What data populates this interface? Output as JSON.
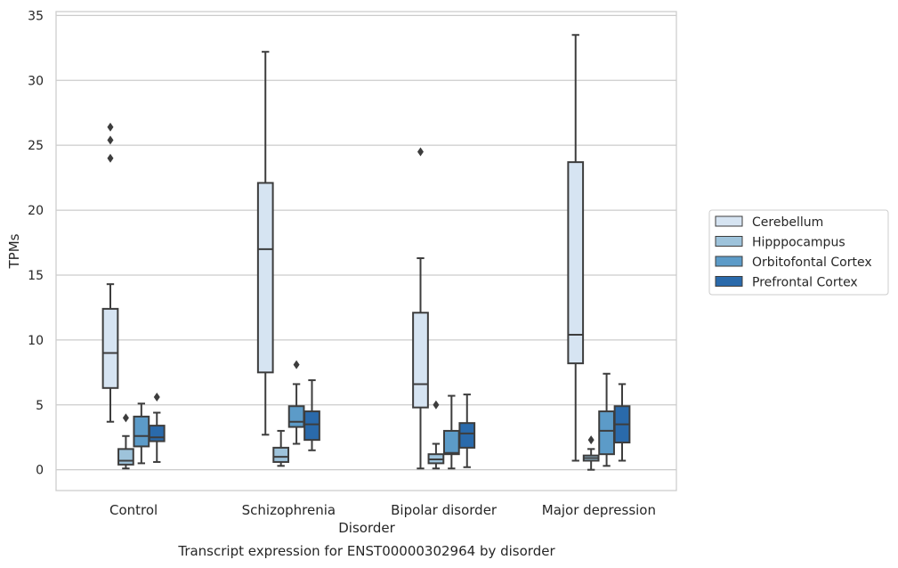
{
  "chart_data": {
    "type": "box",
    "xlabel": "Disorder",
    "ylabel": "TPMs",
    "ylim": [
      -1.6,
      35.3
    ],
    "yticks": [
      0,
      5,
      10,
      15,
      20,
      25,
      30,
      35
    ],
    "grid": "horizontal",
    "legend_position": "right",
    "categories": [
      "Control",
      "Schizophrenia",
      "Bipolar disorder",
      "Major depression"
    ],
    "series": [
      {
        "name": "Cerebellum",
        "color": "#d6e4f2",
        "boxes": [
          {
            "whisker_low": 3.7,
            "q1": 6.3,
            "median": 9.0,
            "q3": 12.4,
            "whisker_high": 14.3,
            "outliers": [
              24.0,
              25.4,
              26.4
            ]
          },
          {
            "whisker_low": 2.7,
            "q1": 7.5,
            "median": 17.0,
            "q3": 22.1,
            "whisker_high": 32.2,
            "outliers": []
          },
          {
            "whisker_low": 0.1,
            "q1": 4.8,
            "median": 6.6,
            "q3": 12.1,
            "whisker_high": 16.3,
            "outliers": [
              24.5
            ]
          },
          {
            "whisker_low": 0.7,
            "q1": 8.2,
            "median": 10.4,
            "q3": 23.7,
            "whisker_high": 33.5,
            "outliers": []
          }
        ]
      },
      {
        "name": "Hipppocampus",
        "color": "#9ec3db",
        "boxes": [
          {
            "whisker_low": 0.1,
            "q1": 0.4,
            "median": 0.7,
            "q3": 1.6,
            "whisker_high": 2.6,
            "outliers": [
              4.0
            ]
          },
          {
            "whisker_low": 0.3,
            "q1": 0.6,
            "median": 1.0,
            "q3": 1.7,
            "whisker_high": 3.0,
            "outliers": []
          },
          {
            "whisker_low": 0.1,
            "q1": 0.5,
            "median": 0.8,
            "q3": 1.2,
            "whisker_high": 2.0,
            "outliers": [
              5.0
            ]
          },
          {
            "whisker_low": 0.0,
            "q1": 0.7,
            "median": 0.9,
            "q3": 1.1,
            "whisker_high": 1.6,
            "outliers": [
              2.3
            ]
          }
        ]
      },
      {
        "name": "Orbitofontal Cortex",
        "color": "#5c9bc8",
        "boxes": [
          {
            "whisker_low": 0.5,
            "q1": 1.8,
            "median": 2.6,
            "q3": 4.1,
            "whisker_high": 5.1,
            "outliers": []
          },
          {
            "whisker_low": 2.0,
            "q1": 3.3,
            "median": 3.7,
            "q3": 4.9,
            "whisker_high": 6.6,
            "outliers": [
              8.1
            ]
          },
          {
            "whisker_low": 0.1,
            "q1": 1.2,
            "median": 1.3,
            "q3": 3.0,
            "whisker_high": 5.7,
            "outliers": []
          },
          {
            "whisker_low": 0.3,
            "q1": 1.2,
            "median": 3.0,
            "q3": 4.5,
            "whisker_high": 7.4,
            "outliers": []
          }
        ]
      },
      {
        "name": "Prefrontal Cortex",
        "color": "#2a6aab",
        "boxes": [
          {
            "whisker_low": 0.6,
            "q1": 2.2,
            "median": 2.5,
            "q3": 3.4,
            "whisker_high": 4.4,
            "outliers": [
              5.6
            ]
          },
          {
            "whisker_low": 1.5,
            "q1": 2.3,
            "median": 3.5,
            "q3": 4.5,
            "whisker_high": 6.9,
            "outliers": []
          },
          {
            "whisker_low": 0.2,
            "q1": 1.7,
            "median": 2.8,
            "q3": 3.6,
            "whisker_high": 5.8,
            "outliers": []
          },
          {
            "whisker_low": 0.7,
            "q1": 2.1,
            "median": 3.5,
            "q3": 4.9,
            "whisker_high": 6.6,
            "outliers": []
          }
        ]
      }
    ]
  },
  "caption": "Transcript expression for ENST00000302964 by disorder"
}
